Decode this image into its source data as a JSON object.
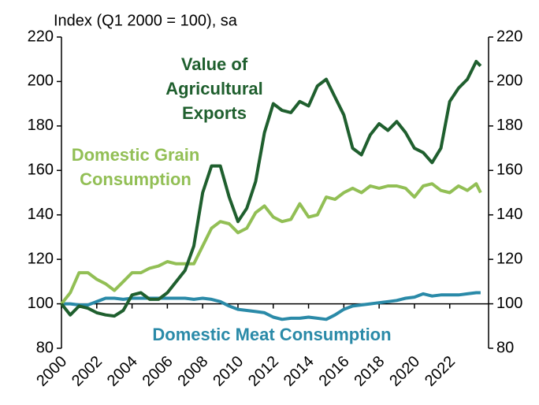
{
  "chart_data": {
    "type": "line",
    "y_axis_label": "Index (Q1 2000 = 100), sa",
    "x": [
      2000,
      2000.5,
      2001,
      2001.5,
      2002,
      2002.5,
      2003,
      2003.5,
      2004,
      2004.5,
      2005,
      2005.5,
      2006,
      2006.5,
      2007,
      2007.5,
      2008,
      2008.5,
      2009,
      2009.5,
      2010,
      2010.5,
      2011,
      2011.5,
      2012,
      2012.5,
      2013,
      2013.5,
      2014,
      2014.5,
      2015,
      2015.5,
      2016,
      2016.5,
      2017,
      2017.5,
      2018,
      2018.5,
      2019,
      2019.5,
      2020,
      2020.5,
      2021,
      2021.5,
      2022,
      2022.5,
      2023,
      2023.5,
      2023.75
    ],
    "series": [
      {
        "name": "Value of Agricultural Exports",
        "color": "#1f5f2e",
        "values": [
          100,
          95,
          99,
          98,
          96,
          95,
          94.5,
          97,
          104,
          105,
          102,
          102,
          105,
          110,
          115,
          126,
          150,
          162,
          162,
          148,
          137,
          143,
          155,
          177,
          190,
          187,
          186,
          191,
          189,
          198,
          201,
          193,
          185,
          170,
          167,
          176,
          181,
          178,
          182,
          177,
          170,
          168,
          163.5,
          170,
          191,
          197,
          201,
          209,
          207
        ]
      },
      {
        "name": "Domestic Grain Consumption",
        "color": "#92bf55",
        "values": [
          100,
          105,
          114,
          114,
          111,
          109,
          106,
          110,
          114,
          114,
          116,
          117,
          119,
          118,
          118,
          118,
          126,
          134,
          137,
          136,
          132,
          134,
          141,
          144,
          139,
          137,
          138,
          145,
          139,
          140,
          148,
          147,
          150,
          152,
          150,
          153,
          152,
          153,
          153,
          152,
          148,
          153,
          154,
          151,
          150,
          153,
          151,
          154,
          150
        ]
      },
      {
        "name": "Domestic Meat Consumption",
        "color": "#2a8aa8",
        "values": [
          100,
          100,
          99.5,
          99.5,
          101,
          102.5,
          102.5,
          102,
          102.5,
          102.5,
          102.5,
          102.5,
          102.5,
          102.5,
          102.5,
          102,
          102.5,
          102,
          101,
          99,
          97.5,
          97,
          96.5,
          96,
          94,
          93,
          93.5,
          93.5,
          94,
          93.5,
          93,
          95,
          97.5,
          99,
          99.5,
          100,
          100.5,
          101,
          101.5,
          102.5,
          103,
          104.5,
          103.5,
          104,
          104,
          104,
          104.5,
          105,
          105
        ]
      }
    ],
    "xlim": [
      2000,
      2024.2
    ],
    "xticks": [
      2000,
      2002,
      2004,
      2006,
      2008,
      2010,
      2012,
      2014,
      2016,
      2018,
      2020,
      2022
    ],
    "ylim": [
      80,
      220
    ],
    "yticks": [
      80,
      100,
      120,
      140,
      160,
      180,
      200,
      220
    ],
    "baseline": 100,
    "grid": false
  }
}
